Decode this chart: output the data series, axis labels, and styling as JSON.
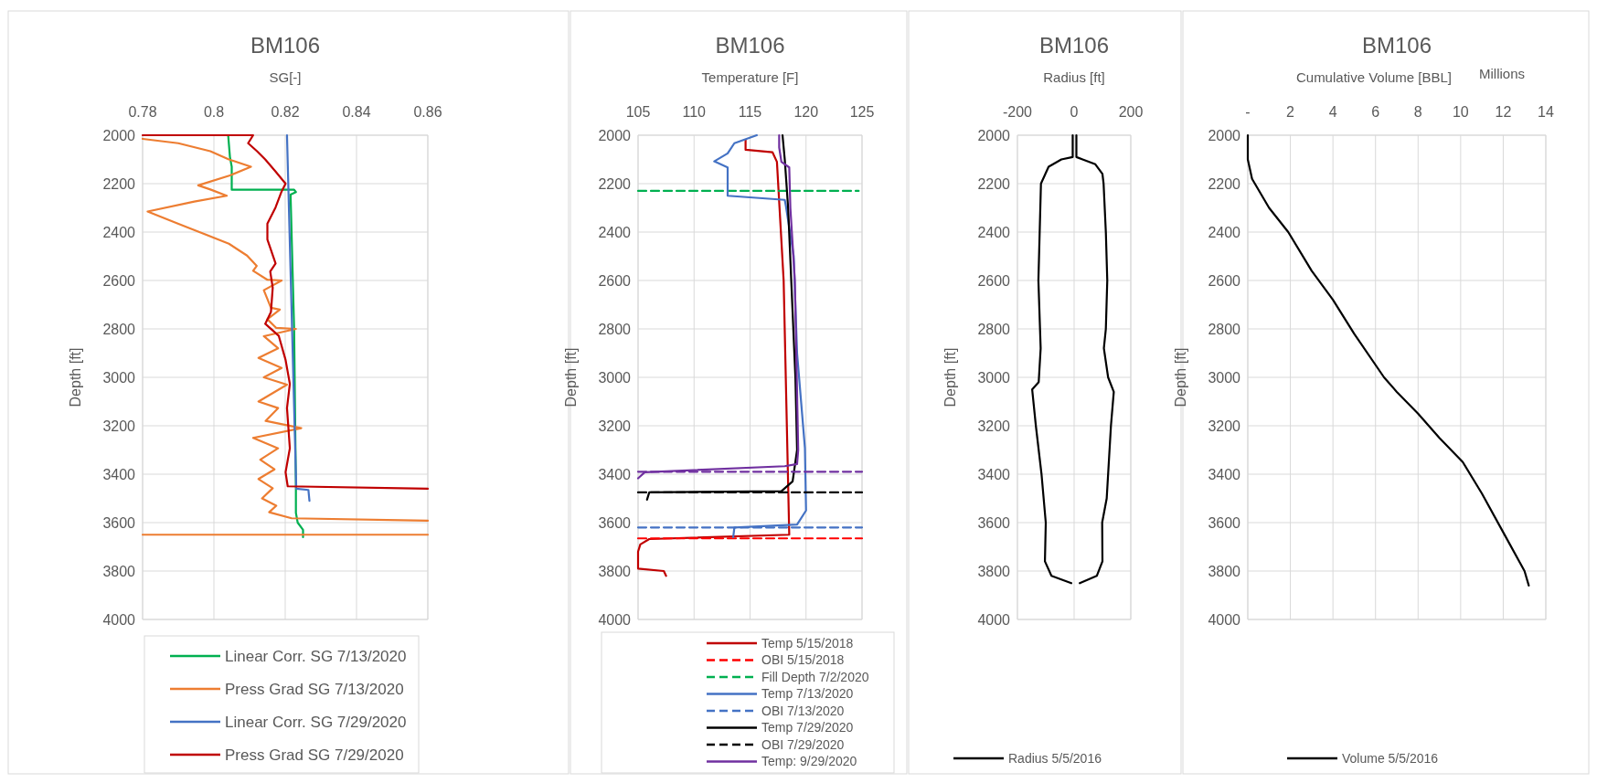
{
  "chart_data": [
    {
      "type": "line",
      "title": "BM106",
      "xlabel": "SG[-]",
      "ylabel": "Depth [ft]",
      "xlim": [
        0.78,
        0.86
      ],
      "xticks": [
        0.78,
        0.8,
        0.82,
        0.84,
        0.86
      ],
      "ylim": [
        4000,
        2000
      ],
      "yticks": [
        2000,
        2200,
        2400,
        2600,
        2800,
        3000,
        3200,
        3400,
        3600,
        3800,
        4000
      ],
      "grid": true,
      "legend": "bottom",
      "series": [
        {
          "name": "Linear Corr. SG 7/13/2020",
          "color": "#00b050",
          "x": [
            0.804,
            0.8045,
            0.805,
            0.805,
            0.8225,
            0.823,
            0.8215,
            0.8225,
            0.823,
            0.823,
            0.8235,
            0.825,
            0.825
          ],
          "values": [
            2000,
            2090,
            2130,
            2225,
            2225,
            2235,
            2245,
            2800,
            3450,
            3560,
            3600,
            3630,
            3660
          ]
        },
        {
          "name": "Press Grad SG 7/13/2020",
          "color": "#ed7d31",
          "x": [
            0.78,
            0.79,
            0.799,
            0.8042,
            0.8104,
            0.8045,
            0.7956,
            0.799,
            0.8036,
            0.7945,
            0.7814,
            0.7899,
            0.7956,
            0.8042,
            0.8093,
            0.812,
            0.811,
            0.815,
            0.819,
            0.814,
            0.816,
            0.8185,
            0.815,
            0.8175,
            0.823,
            0.814,
            0.818,
            0.8125,
            0.819,
            0.814,
            0.8205,
            0.8125,
            0.818,
            0.8145,
            0.8245,
            0.811,
            0.818,
            0.813,
            0.817,
            0.8125,
            0.8165,
            0.8135,
            0.8175,
            0.8155,
            0.8218,
            0.86,
            null,
            0.78,
            0.86
          ],
          "values": [
            2015,
            2033,
            2066,
            2100,
            2130,
            2166,
            2207,
            2224,
            2250,
            2274,
            2315,
            2365,
            2398,
            2448,
            2497,
            2540,
            2560,
            2597,
            2600,
            2640,
            2713,
            2720,
            2760,
            2796,
            2800,
            2830,
            2880,
            2920,
            2961,
            3000,
            3030,
            3100,
            3127,
            3180,
            3210,
            3250,
            3293,
            3340,
            3380,
            3420,
            3458,
            3500,
            3530,
            3557,
            3582,
            3592,
            null,
            3650,
            3650
          ]
        },
        {
          "name": "Linear Corr. SG 7/29/2020",
          "color": "#4472c4",
          "x": [
            0.8205,
            0.8231,
            0.8265,
            0.8268
          ],
          "values": [
            2000,
            3460,
            3465,
            3510
          ]
        },
        {
          "name": "Press Grad SG 7/29/2020",
          "color": "#c00000",
          "x": [
            0.78,
            0.811,
            0.8096,
            0.8121,
            0.8144,
            0.8173,
            0.8201,
            0.819,
            0.8173,
            0.815,
            0.815,
            0.8173,
            0.8158,
            0.8165,
            0.816,
            0.8144,
            0.8182,
            0.8201,
            0.8213,
            0.8205,
            0.8213,
            0.8201,
            0.8207,
            0.86
          ],
          "values": [
            2000,
            2000,
            2033,
            2066,
            2100,
            2150,
            2200,
            2232,
            2298,
            2365,
            2431,
            2530,
            2563,
            2630,
            2730,
            2779,
            2829,
            2928,
            3027,
            3127,
            3293,
            3392,
            3450,
            3460
          ]
        }
      ]
    },
    {
      "type": "line",
      "title": "BM106",
      "xlabel": "Temperature  [F]",
      "ylabel": "Depth [ft]",
      "xlim": [
        105,
        125
      ],
      "xticks": [
        105,
        110,
        115,
        120,
        125
      ],
      "ylim": [
        4000,
        2000
      ],
      "yticks": [
        2000,
        2200,
        2400,
        2600,
        2800,
        3000,
        3200,
        3400,
        3600,
        3800,
        4000
      ],
      "grid": true,
      "legend": "bottom",
      "series": [
        {
          "name": "Temp 5/15/2018",
          "color": "#c00000",
          "x": [
            114.6,
            114.6,
            117.0,
            117.4,
            118.0,
            118.5,
            106,
            105.2,
            105,
            105,
            107.3,
            107.5
          ],
          "values": [
            2020,
            2060,
            2070,
            2110,
            2600,
            3650,
            3668,
            3690,
            3720,
            3790,
            3800,
            3820
          ]
        },
        {
          "name": "OBI 5/15/2018",
          "color": "#ff0000",
          "line_style": "dashed",
          "x": [
            105,
            125
          ],
          "values": [
            3665,
            3665
          ]
        },
        {
          "name": "Fill Depth 7/2/2020",
          "color": "#00b050",
          "line_style": "dashed",
          "x": [
            105,
            124.7
          ],
          "values": [
            2230,
            2230
          ]
        },
        {
          "name": "Temp 7/13/2020",
          "color": "#4472c4",
          "x": [
            115.6,
            113.6,
            113,
            111.8,
            113,
            113,
            113,
            118.1,
            118.2,
            118.9,
            119.2,
            119.9,
            120,
            119.2,
            113.6,
            113.5
          ],
          "values": [
            2000,
            2033,
            2075,
            2108,
            2133,
            2160,
            2250,
            2267,
            2292,
            2500,
            2900,
            3292,
            3550,
            3608,
            3620,
            3660
          ]
        },
        {
          "name": "OBI 7/13/2020",
          "color": "#4472c4",
          "line_style": "dashed",
          "x": [
            105,
            125
          ],
          "values": [
            3620,
            3620
          ]
        },
        {
          "name": "Temp 7/29/2020",
          "color": "#000000",
          "x": [
            117.9,
            118.0,
            118.1,
            118.4,
            119.05,
            119.2,
            118.8,
            117.8,
            106,
            105.8
          ],
          "values": [
            2000,
            2050,
            2100,
            2300,
            3000,
            3300,
            3430,
            3470,
            3475,
            3505
          ]
        },
        {
          "name": "OBI 7/29/2020",
          "color": "#000000",
          "line_style": "dashed",
          "x": [
            105,
            125
          ],
          "values": [
            3475,
            3475
          ]
        },
        {
          "name": "Temp: 9/29/2020",
          "color": "#7030a0",
          "x": [
            117.6,
            117.6,
            117.8,
            118.5,
            118.6,
            119.0,
            119.3,
            119.2,
            118.1,
            105.6,
            105
          ],
          "values": [
            2000,
            2050,
            2110,
            2133,
            2300,
            2600,
            3300,
            3358,
            3367,
            3392,
            3417
          ]
        },
        {
          "color": "#7030a0",
          "line_style": "dashed",
          "x": [
            105,
            125
          ],
          "values": [
            3390,
            3390
          ]
        }
      ]
    },
    {
      "type": "line",
      "title": "BM106",
      "xlabel": "Radius [ft]",
      "ylabel": "Depth [ft]",
      "xlim": [
        -200,
        200
      ],
      "xticks": [
        -200,
        0,
        200
      ],
      "ylim": [
        4000,
        2000
      ],
      "yticks": [
        2000,
        2200,
        2400,
        2600,
        2800,
        3000,
        3200,
        3400,
        3600,
        3800,
        4000
      ],
      "grid": true,
      "legend": "bottom",
      "series": [
        {
          "name": "Radius 5/5/2016",
          "color": "#000000",
          "x": [
            8,
            8,
            30,
            75,
            100,
            104,
            112,
            117,
            112,
            105,
            120,
            140,
            130,
            115,
            99,
            100,
            80,
            20,
            null,
            -10,
            -80,
            -103,
            -100,
            -115,
            -135,
            -148,
            -125,
            -118,
            -126,
            -117,
            -90,
            -45,
            -5,
            -5
          ],
          "values": [
            2000,
            2090,
            2100,
            2120,
            2160,
            2200,
            2400,
            2600,
            2800,
            2880,
            3000,
            3060,
            3200,
            3500,
            3600,
            3760,
            3820,
            3850,
            null,
            3850,
            3820,
            3760,
            3600,
            3400,
            3200,
            3050,
            3020,
            2880,
            2600,
            2200,
            2130,
            2100,
            2090,
            2000
          ]
        }
      ]
    },
    {
      "type": "line",
      "title": "BM106",
      "xlabel": "Cumulative Volume [BBL]",
      "ylabel": "Depth [ft]",
      "annotations": [
        "Millions"
      ],
      "xlim": [
        0,
        14
      ],
      "xticks": [
        {
          "value": 0,
          "label": "-"
        },
        2,
        4,
        6,
        8,
        10,
        12,
        14
      ],
      "ylim": [
        4000,
        2000
      ],
      "yticks": [
        2000,
        2200,
        2400,
        2600,
        2800,
        3000,
        3200,
        3400,
        3600,
        3800,
        4000
      ],
      "grid": true,
      "legend": "bottom",
      "series": [
        {
          "name": "Volume 5/5/2016",
          "color": "#000000",
          "x": [
            0,
            0,
            0.2,
            1,
            1.9,
            3,
            4,
            5,
            6.4,
            7,
            8,
            9,
            10.1,
            11,
            12,
            13,
            13.2
          ],
          "values": [
            2000,
            2100,
            2180,
            2300,
            2400,
            2560,
            2680,
            2820,
            3000,
            3060,
            3150,
            3250,
            3350,
            3480,
            3640,
            3800,
            3860
          ]
        }
      ]
    }
  ]
}
